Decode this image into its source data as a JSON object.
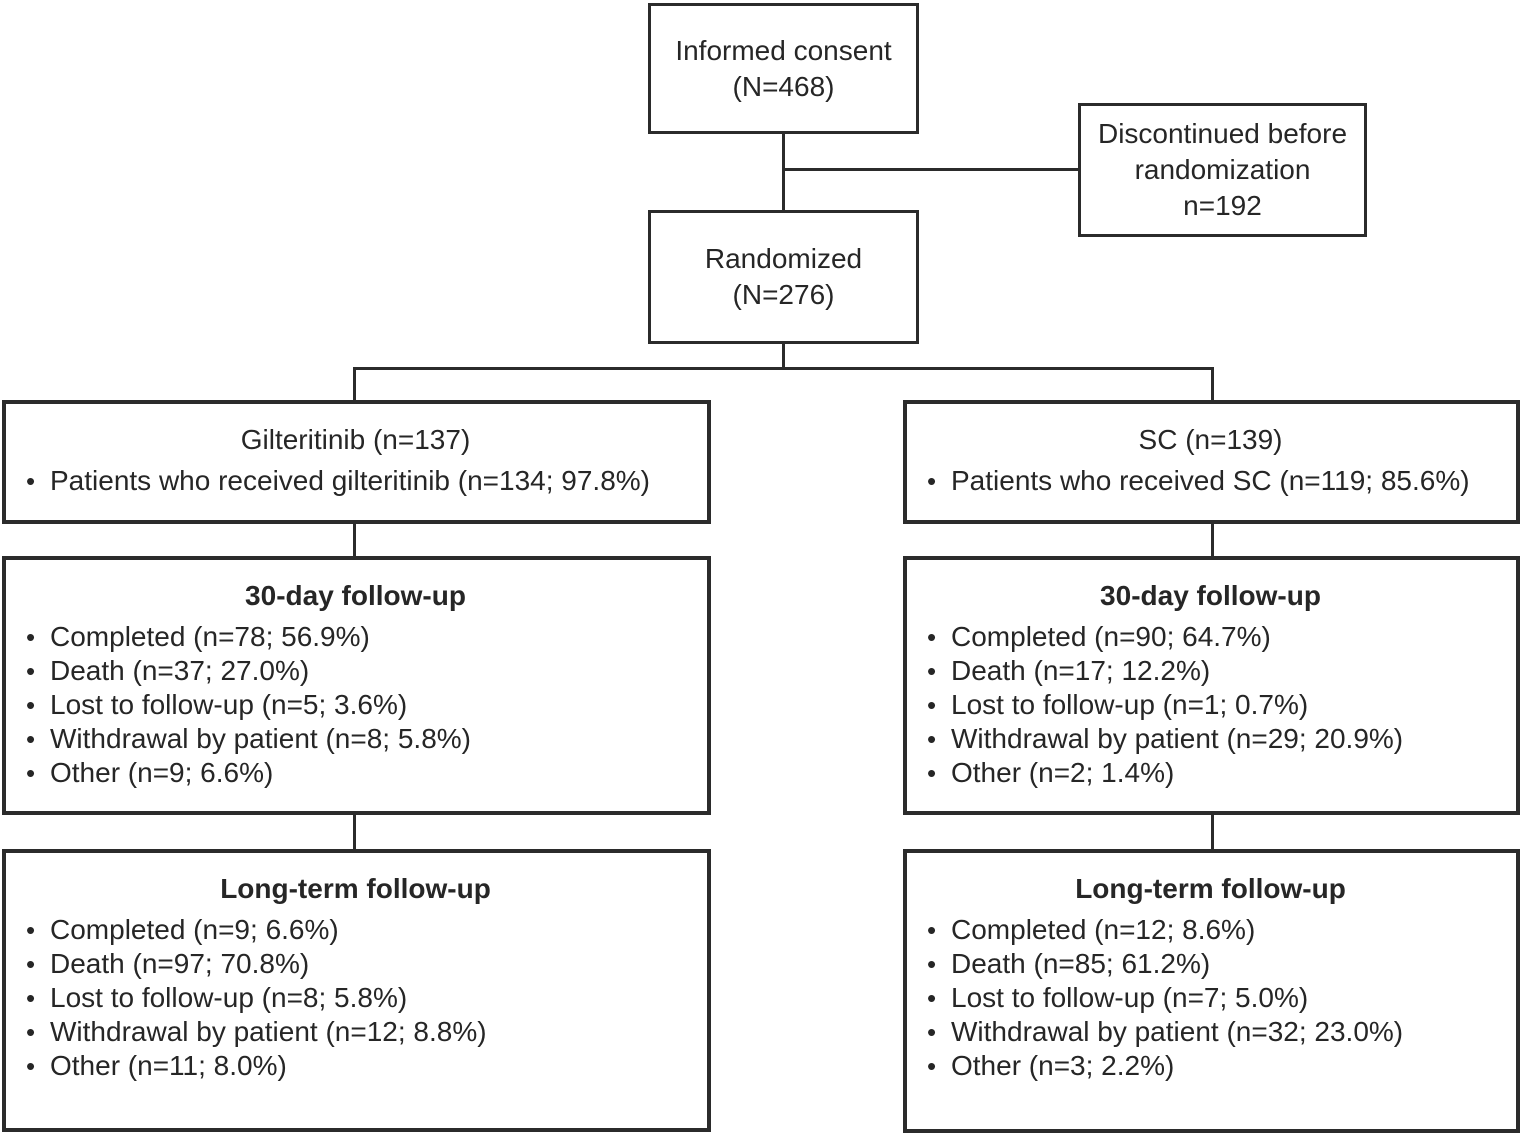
{
  "bullet_glyph": "•",
  "colors": {
    "line": "#2b2b2b",
    "text": "#262626",
    "background": "#ffffff"
  },
  "boxes": {
    "informed_consent": {
      "lines": [
        "Informed consent",
        "(N=468)"
      ]
    },
    "discontinued": {
      "lines": [
        "Discontinued before",
        "randomization",
        "n=192"
      ]
    },
    "randomized": {
      "lines": [
        "Randomized",
        "(N=276)"
      ]
    },
    "arm_left": {
      "title": "Gilteritinib (n=137)",
      "bullets": [
        "Patients who received gilteritinib (n=134; 97.8%)"
      ]
    },
    "arm_right": {
      "title": "SC (n=139)",
      "bullets": [
        "Patients who received SC (n=119; 85.6%)"
      ]
    },
    "left_30day": {
      "title": "30-day follow-up",
      "bullets": [
        "Completed (n=78; 56.9%)",
        "Death (n=37; 27.0%)",
        "Lost to follow-up (n=5; 3.6%)",
        "Withdrawal by patient (n=8; 5.8%)",
        "Other (n=9; 6.6%)"
      ]
    },
    "right_30day": {
      "title": "30-day follow-up",
      "bullets": [
        "Completed (n=90; 64.7%)",
        "Death (n=17; 12.2%)",
        "Lost to follow-up (n=1; 0.7%)",
        "Withdrawal by patient (n=29; 20.9%)",
        "Other (n=2; 1.4%)"
      ]
    },
    "left_longterm": {
      "title": "Long-term follow-up",
      "bullets": [
        "Completed (n=9; 6.6%)",
        "Death (n=97; 70.8%)",
        "Lost to follow-up (n=8; 5.8%)",
        "Withdrawal by patient (n=12; 8.8%)",
        "Other (n=11; 8.0%)"
      ]
    },
    "right_longterm": {
      "title": "Long-term follow-up",
      "bullets": [
        "Completed (n=12; 8.6%)",
        "Death (n=85; 61.2%)",
        "Lost to follow-up (n=7; 5.0%)",
        "Withdrawal by patient (n=32; 23.0%)",
        "Other (n=3; 2.2%)"
      ]
    }
  }
}
